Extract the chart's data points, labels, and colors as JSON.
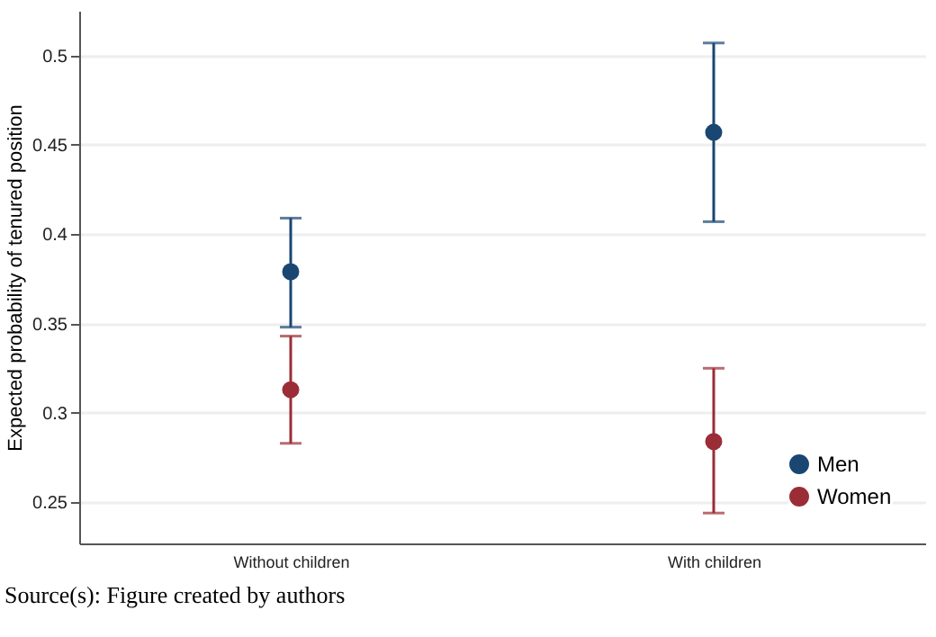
{
  "chart_data": {
    "type": "scatter",
    "ylabel": "Expected probability of tenured position",
    "categories": [
      "Without children",
      "With children"
    ],
    "series": [
      {
        "name": "Men",
        "color": "#1a4672",
        "values": [
          0.379,
          0.457
        ],
        "errors": [
          [
            0.348,
            0.409
          ],
          [
            0.407,
            0.507
          ]
        ]
      },
      {
        "name": "Women",
        "color": "#9b2d36",
        "values": [
          0.313,
          0.284
        ],
        "errors": [
          [
            0.283,
            0.343
          ],
          [
            0.244,
            0.325
          ]
        ]
      }
    ],
    "ylim": [
      0.227,
      0.525
    ],
    "yticks": [
      0.25,
      {
        "value": 0.3,
        "label": "0.3"
      },
      0.35,
      {
        "value": 0.4,
        "label": "0.4"
      },
      0.45,
      {
        "value": 0.5,
        "label": "0.5"
      }
    ],
    "grid": "y",
    "legend": "bottom right",
    "marker": "circle",
    "annotations": [
      "Source(s): Figure created by authors"
    ]
  }
}
